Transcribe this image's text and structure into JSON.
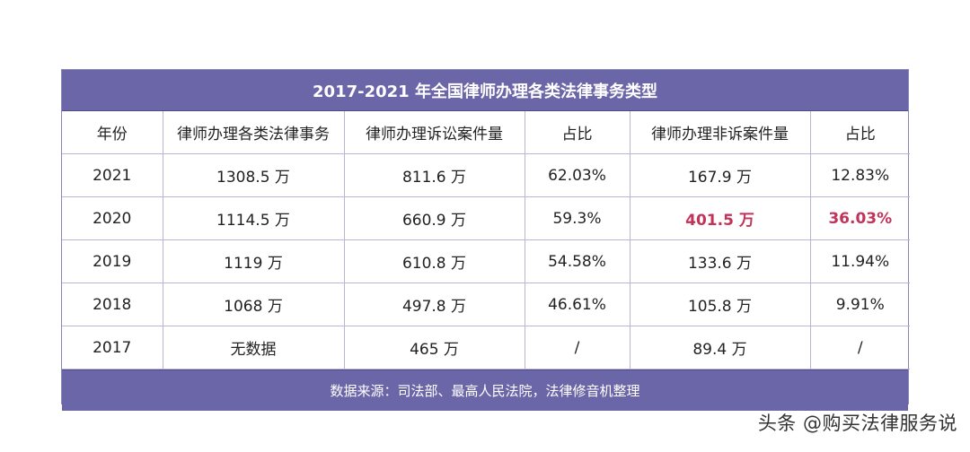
{
  "title": "2017-2021 年全国律师办理各类法律事务类型",
  "headers": [
    "年份",
    "律师办理各类法律事务",
    "律师办理诉讼案件量",
    "占比",
    "律师办理非诉案件量",
    "占比"
  ],
  "rows": [
    [
      "2021",
      "1308.5 万",
      "811.6 万",
      "62.03%",
      "167.9 万",
      "12.83%"
    ],
    [
      "2020",
      "1114.5 万",
      "660.9 万",
      "59.3%",
      "401.5 万",
      "36.03%"
    ],
    [
      "2019",
      "1119 万",
      "610.8 万",
      "54.58%",
      "133.6 万",
      "11.94%"
    ],
    [
      "2018",
      "1068 万",
      "497.8 万",
      "46.61%",
      "105.8 万",
      "9.91%"
    ],
    [
      "2017",
      "无数据",
      "465 万",
      "/",
      "89.4 万",
      "/"
    ]
  ],
  "highlight_color": "#c2335a",
  "header_color": "#6b66a7",
  "source": "数据来源：司法部、最高人民法院，法律修音机整理",
  "watermark": "头条 @购买法律服务说"
}
